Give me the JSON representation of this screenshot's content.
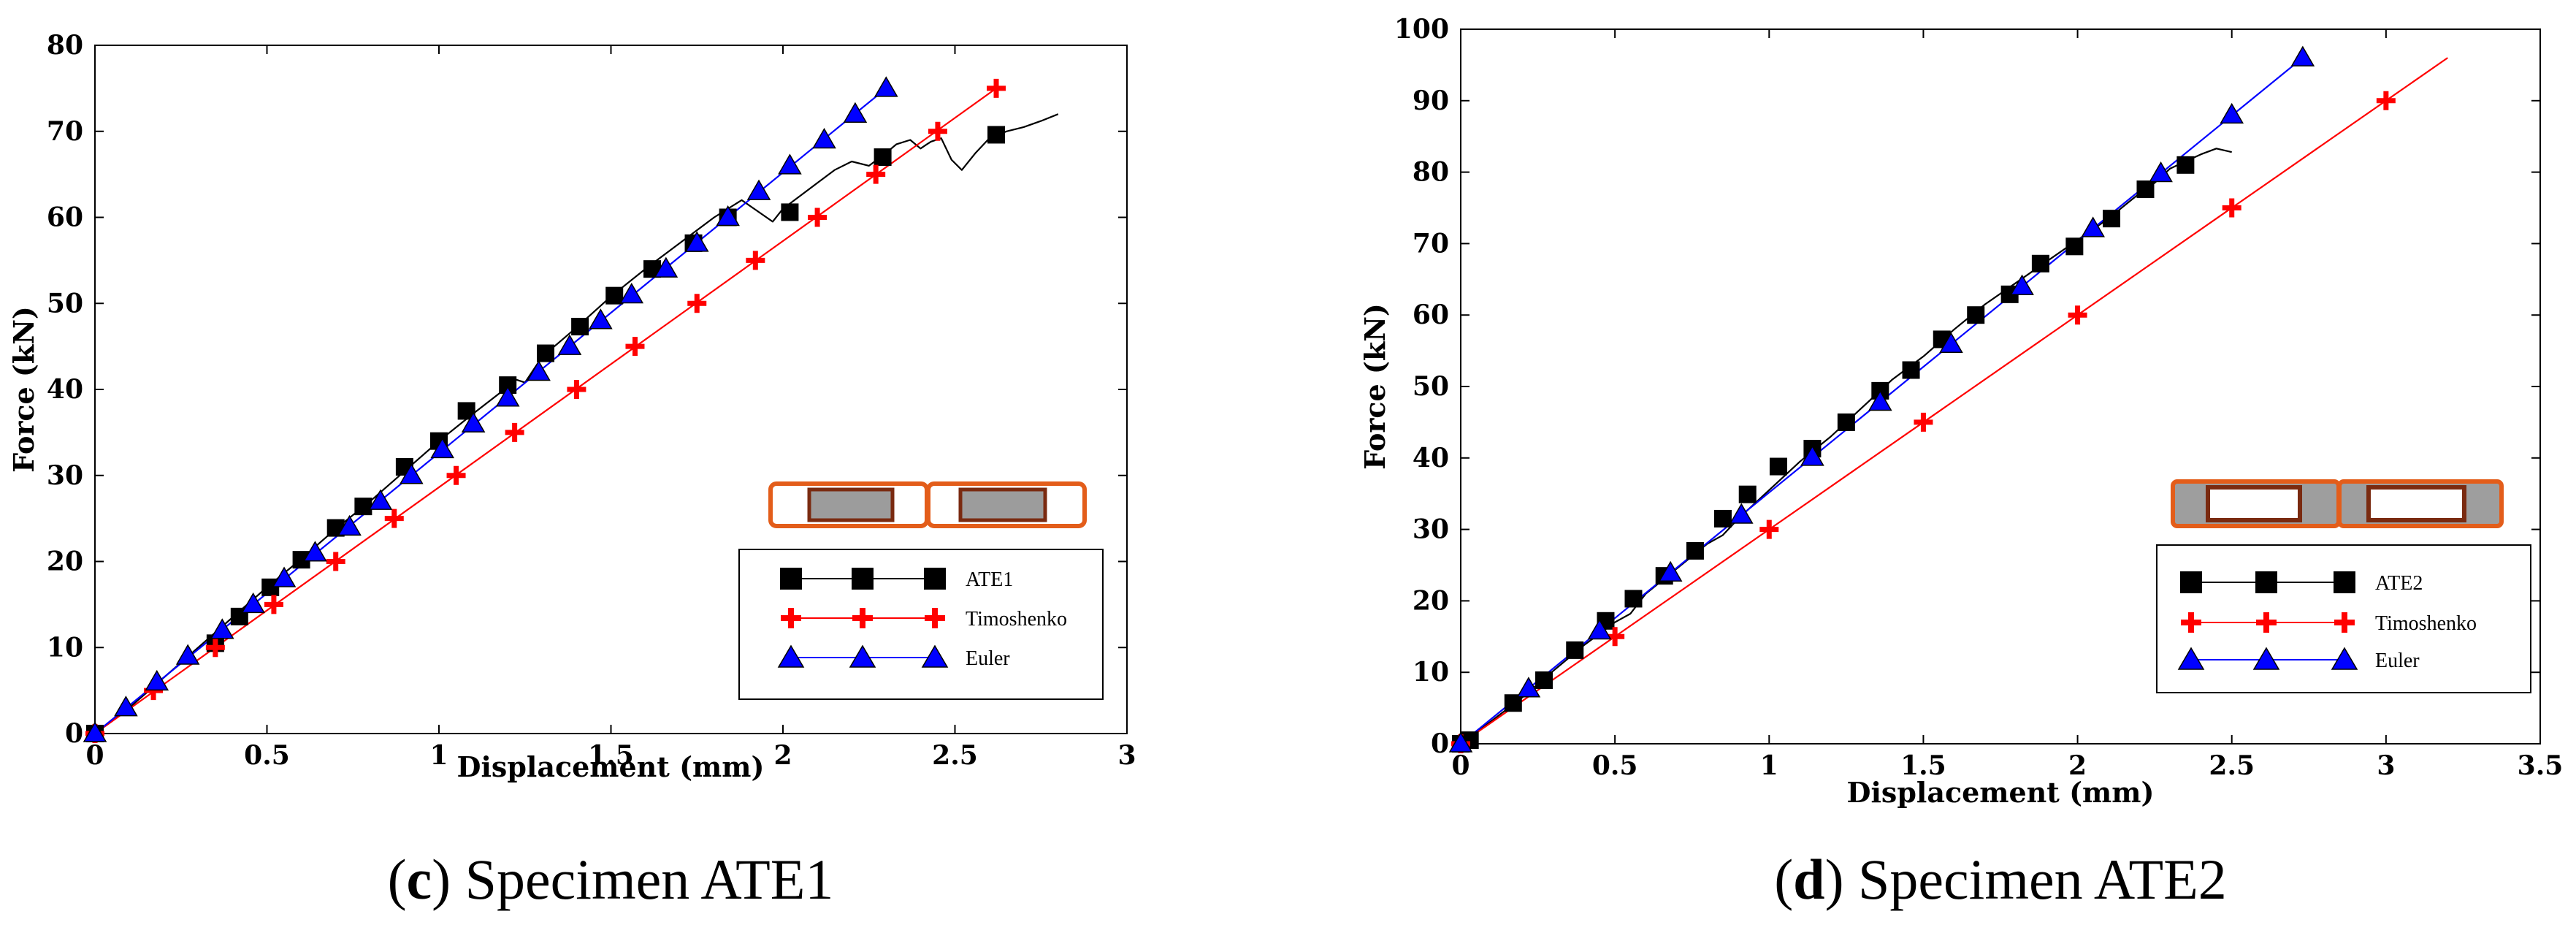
{
  "chart_data": [
    {
      "type": "line",
      "caption": {
        "letter": "c",
        "text": "Specimen ATE1"
      },
      "xlabel": "Displacement (mm)",
      "ylabel": "Force (kN)",
      "xlim": [
        0,
        3
      ],
      "ylim": [
        0,
        80
      ],
      "xticks": [
        0,
        0.5,
        1,
        1.5,
        2,
        2.5,
        3
      ],
      "yticks": [
        0,
        10,
        20,
        30,
        40,
        50,
        60,
        70,
        80
      ],
      "legend_position": "lower-right",
      "series": [
        {
          "name": "ATE1",
          "marker": "square",
          "color": "#000000",
          "curve": [
            [
              0,
              0
            ],
            [
              0.1,
              3
            ],
            [
              0.2,
              6.5
            ],
            [
              0.3,
              10
            ],
            [
              0.4,
              13.5
            ],
            [
              0.5,
              17
            ],
            [
              0.6,
              20.3
            ],
            [
              0.7,
              23.8
            ],
            [
              0.8,
              27
            ],
            [
              0.9,
              30.5
            ],
            [
              1.0,
              34
            ],
            [
              1.1,
              37.2
            ],
            [
              1.2,
              40.3
            ],
            [
              1.22,
              41.2
            ],
            [
              1.25,
              40.8
            ],
            [
              1.3,
              43.8
            ],
            [
              1.4,
              47.2
            ],
            [
              1.5,
              50.8
            ],
            [
              1.6,
              54
            ],
            [
              1.7,
              57
            ],
            [
              1.8,
              60
            ],
            [
              1.88,
              62
            ],
            [
              1.97,
              59.5
            ],
            [
              2.0,
              61
            ],
            [
              2.05,
              62.5
            ],
            [
              2.1,
              64
            ],
            [
              2.15,
              65.5
            ],
            [
              2.2,
              66.5
            ],
            [
              2.25,
              66
            ],
            [
              2.3,
              67.5
            ],
            [
              2.33,
              68.5
            ],
            [
              2.37,
              69
            ],
            [
              2.4,
              68
            ],
            [
              2.43,
              68.8
            ],
            [
              2.46,
              69.2
            ],
            [
              2.49,
              66.7
            ],
            [
              2.52,
              65.5
            ],
            [
              2.56,
              67.5
            ],
            [
              2.6,
              69.2
            ],
            [
              2.65,
              70
            ],
            [
              2.7,
              70.5
            ],
            [
              2.75,
              71.2
            ],
            [
              2.8,
              72
            ]
          ],
          "markers": [
            [
              0,
              0
            ],
            [
              0.35,
              10.5
            ],
            [
              0.42,
              13.6
            ],
            [
              0.51,
              17
            ],
            [
              0.6,
              20.2
            ],
            [
              0.7,
              23.9
            ],
            [
              0.78,
              26.4
            ],
            [
              0.9,
              31
            ],
            [
              1.0,
              34
            ],
            [
              1.08,
              37.5
            ],
            [
              1.2,
              40.5
            ],
            [
              1.31,
              44.2
            ],
            [
              1.41,
              47.3
            ],
            [
              1.51,
              50.9
            ],
            [
              1.62,
              54
            ],
            [
              1.74,
              57
            ],
            [
              1.84,
              60
            ],
            [
              2.02,
              60.6
            ],
            [
              2.29,
              67
            ],
            [
              2.62,
              69.6
            ]
          ]
        },
        {
          "name": "Timoshenko",
          "marker": "plus",
          "color": "#ff0000",
          "curve": [
            [
              0,
              0
            ],
            [
              2.62,
              75
            ]
          ],
          "markers": [
            [
              0,
              0
            ],
            [
              0.17,
              5
            ],
            [
              0.35,
              10
            ],
            [
              0.52,
              15
            ],
            [
              0.7,
              20
            ],
            [
              0.87,
              25
            ],
            [
              1.05,
              30
            ],
            [
              1.22,
              35
            ],
            [
              1.4,
              40
            ],
            [
              1.57,
              45
            ],
            [
              1.75,
              50
            ],
            [
              1.92,
              55
            ],
            [
              2.1,
              60
            ],
            [
              2.27,
              65
            ],
            [
              2.45,
              70
            ],
            [
              2.62,
              75
            ]
          ]
        },
        {
          "name": "Euler",
          "marker": "triangle",
          "color": "#0000ff",
          "curve": [
            [
              0,
              0
            ],
            [
              2.3,
              75
            ]
          ],
          "markers": [
            [
              0,
              0
            ],
            [
              0.09,
              3
            ],
            [
              0.18,
              6
            ],
            [
              0.27,
              9
            ],
            [
              0.37,
              12
            ],
            [
              0.46,
              15
            ],
            [
              0.55,
              18
            ],
            [
              0.64,
              21
            ],
            [
              0.74,
              24
            ],
            [
              0.83,
              27
            ],
            [
              0.92,
              30
            ],
            [
              1.01,
              33
            ],
            [
              1.1,
              36
            ],
            [
              1.2,
              39
            ],
            [
              1.29,
              42
            ],
            [
              1.38,
              45
            ],
            [
              1.47,
              48
            ],
            [
              1.56,
              51
            ],
            [
              1.66,
              54
            ],
            [
              1.75,
              57
            ],
            [
              1.84,
              60
            ],
            [
              1.93,
              63
            ],
            [
              2.02,
              66
            ],
            [
              2.12,
              69
            ],
            [
              2.21,
              72
            ],
            [
              2.3,
              75
            ]
          ]
        }
      ]
    },
    {
      "type": "line",
      "caption": {
        "letter": "d",
        "text": "Specimen ATE2"
      },
      "xlabel": "Displacement (mm)",
      "ylabel": "Force (kN)",
      "xlim": [
        0,
        3.5
      ],
      "ylim": [
        0,
        100
      ],
      "xticks": [
        0,
        0.5,
        1,
        1.5,
        2,
        2.5,
        3,
        3.5
      ],
      "yticks": [
        0,
        10,
        20,
        30,
        40,
        50,
        60,
        70,
        80,
        90,
        100
      ],
      "legend_position": "lower-right",
      "series": [
        {
          "name": "ATE2",
          "marker": "square",
          "color": "#000000",
          "curve": [
            [
              0,
              0
            ],
            [
              0.1,
              3.2
            ],
            [
              0.2,
              6.5
            ],
            [
              0.3,
              10.2
            ],
            [
              0.4,
              13.8
            ],
            [
              0.5,
              17
            ],
            [
              0.55,
              18.2
            ],
            [
              0.6,
              21
            ],
            [
              0.7,
              24.5
            ],
            [
              0.8,
              28
            ],
            [
              0.85,
              29.2
            ],
            [
              0.9,
              31.5
            ],
            [
              1.0,
              35.5
            ],
            [
              1.1,
              39.5
            ],
            [
              1.2,
              43
            ],
            [
              1.3,
              47
            ],
            [
              1.4,
              51
            ],
            [
              1.5,
              54.2
            ],
            [
              1.6,
              58
            ],
            [
              1.7,
              61.5
            ],
            [
              1.8,
              64.5
            ],
            [
              1.9,
              67.5
            ],
            [
              2.0,
              70.5
            ],
            [
              2.1,
              73.5
            ],
            [
              2.2,
              77
            ],
            [
              2.25,
              78.5
            ],
            [
              2.3,
              80.5
            ],
            [
              2.35,
              81.5
            ],
            [
              2.4,
              82.5
            ],
            [
              2.45,
              83.3
            ],
            [
              2.5,
              82.8
            ]
          ],
          "markers": [
            [
              0,
              0
            ],
            [
              0.03,
              0.5
            ],
            [
              0.17,
              5.7
            ],
            [
              0.27,
              8.9
            ],
            [
              0.37,
              13.1
            ],
            [
              0.47,
              17.2
            ],
            [
              0.56,
              20.3
            ],
            [
              0.66,
              23.5
            ],
            [
              0.76,
              27
            ],
            [
              0.85,
              31.5
            ],
            [
              0.93,
              34.9
            ],
            [
              1.03,
              38.8
            ],
            [
              1.14,
              41.3
            ],
            [
              1.25,
              45
            ],
            [
              1.36,
              49.4
            ],
            [
              1.46,
              52.3
            ],
            [
              1.56,
              56.6
            ],
            [
              1.67,
              60
            ],
            [
              1.78,
              62.9
            ],
            [
              1.88,
              67.2
            ],
            [
              1.99,
              69.6
            ],
            [
              2.11,
              73.5
            ],
            [
              2.22,
              77.6
            ],
            [
              2.35,
              81
            ]
          ]
        },
        {
          "name": "Timoshenko",
          "marker": "plus",
          "color": "#ff0000",
          "curve": [
            [
              0,
              0
            ],
            [
              3.2,
              96
            ]
          ],
          "markers": [
            [
              0,
              0
            ],
            [
              0.5,
              15
            ],
            [
              1.0,
              30
            ],
            [
              1.5,
              45
            ],
            [
              2.0,
              60
            ],
            [
              2.5,
              75
            ],
            [
              3.0,
              90
            ]
          ]
        },
        {
          "name": "Euler",
          "marker": "triangle",
          "color": "#0000ff",
          "curve": [
            [
              0,
              0
            ],
            [
              2.73,
              96
            ]
          ],
          "markers": [
            [
              0,
              0
            ],
            [
              0.22,
              7.7
            ],
            [
              0.45,
              15.8
            ],
            [
              0.68,
              23.9
            ],
            [
              0.91,
              32
            ],
            [
              1.14,
              40.1
            ],
            [
              1.36,
              47.8
            ],
            [
              1.59,
              55.9
            ],
            [
              1.82,
              64
            ],
            [
              2.05,
              72.1
            ],
            [
              2.27,
              79.8
            ],
            [
              2.5,
              88
            ],
            [
              2.73,
              96
            ]
          ]
        }
      ]
    }
  ]
}
